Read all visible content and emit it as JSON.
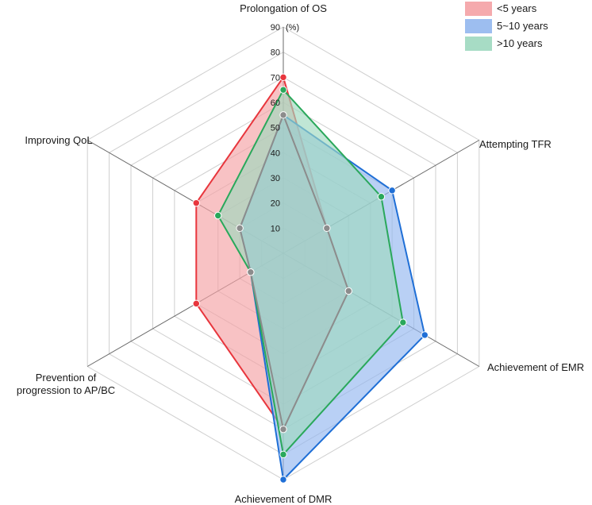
{
  "chart_data": {
    "type": "radar",
    "unit_label": "(%)",
    "axes": [
      "Prolongation of OS",
      "Attempting TFR",
      "Achievement of EMR",
      "Achievement of DMR",
      "Prevention of\nprogression to AP/BC",
      "Improving QoL"
    ],
    "ticks": [
      10,
      20,
      30,
      40,
      50,
      60,
      70,
      80,
      90
    ],
    "range": [
      0,
      90
    ],
    "grid": true,
    "legend_position": "top-right",
    "series": [
      {
        "name": "<5 years",
        "values": [
          70,
          20,
          30,
          70,
          40,
          40
        ],
        "line_color": "#e8363d",
        "fill_color": "#f4a1a5",
        "fill_opacity": 0.65
      },
      {
        "name": "5~10 years",
        "values": [
          55,
          50,
          65,
          90,
          15,
          20
        ],
        "line_color": "#1f6fd6",
        "fill_color": "#93b7ef",
        "fill_opacity": 0.65
      },
      {
        "name": ">10 years",
        "values": [
          65,
          45,
          55,
          80,
          15,
          30
        ],
        "line_color": "#2aa85b",
        "fill_color": "#9ed9bf",
        "fill_opacity": 0.65
      }
    ],
    "overlap_line_color": "#8c8c8c"
  }
}
